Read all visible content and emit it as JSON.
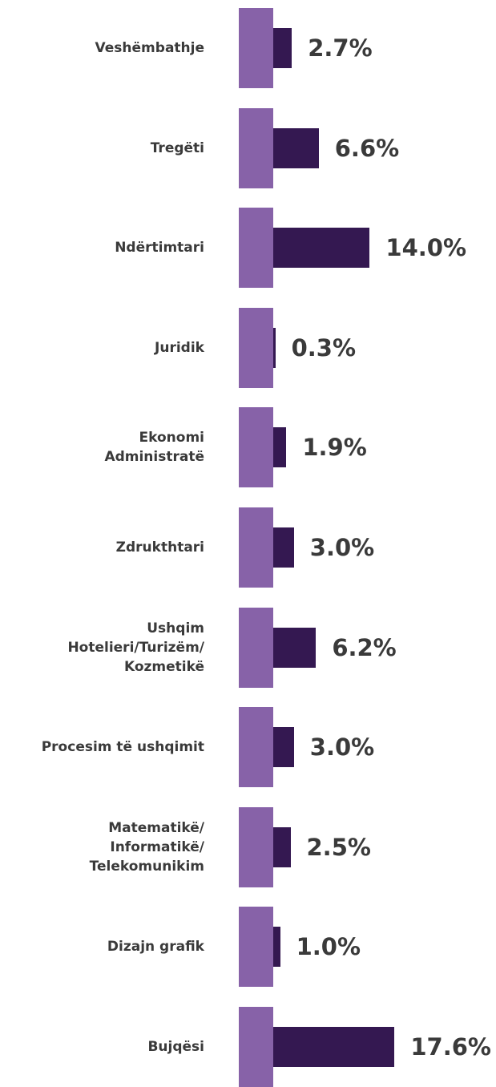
{
  "chart_data": {
    "type": "bar",
    "categories": [
      "Veshëmbathje",
      "Tregëti",
      "Ndërtimtari",
      "Juridik",
      "Ekonomi\nAdministratë",
      "Zdrukthtari",
      "Ushqim\nHotelieri/Turizëm/\nKozmetikë",
      "Procesim të ushqimit",
      "Matematikë/\nInformatikë/\nTelekomunikim",
      "Dizajn grafik",
      "Bujqësi"
    ],
    "values": [
      2.7,
      6.6,
      14.0,
      0.3,
      1.9,
      3.0,
      6.2,
      3.0,
      2.5,
      1.0,
      17.6
    ],
    "value_labels": [
      "2.7%",
      "6.6%",
      "14.0%",
      "0.3%",
      "1.9%",
      "3.0%",
      "6.2%",
      "3.0%",
      "2.5%",
      "1.0%",
      "17.6%"
    ],
    "color": "#341851",
    "accent_color": "#8762a8"
  }
}
